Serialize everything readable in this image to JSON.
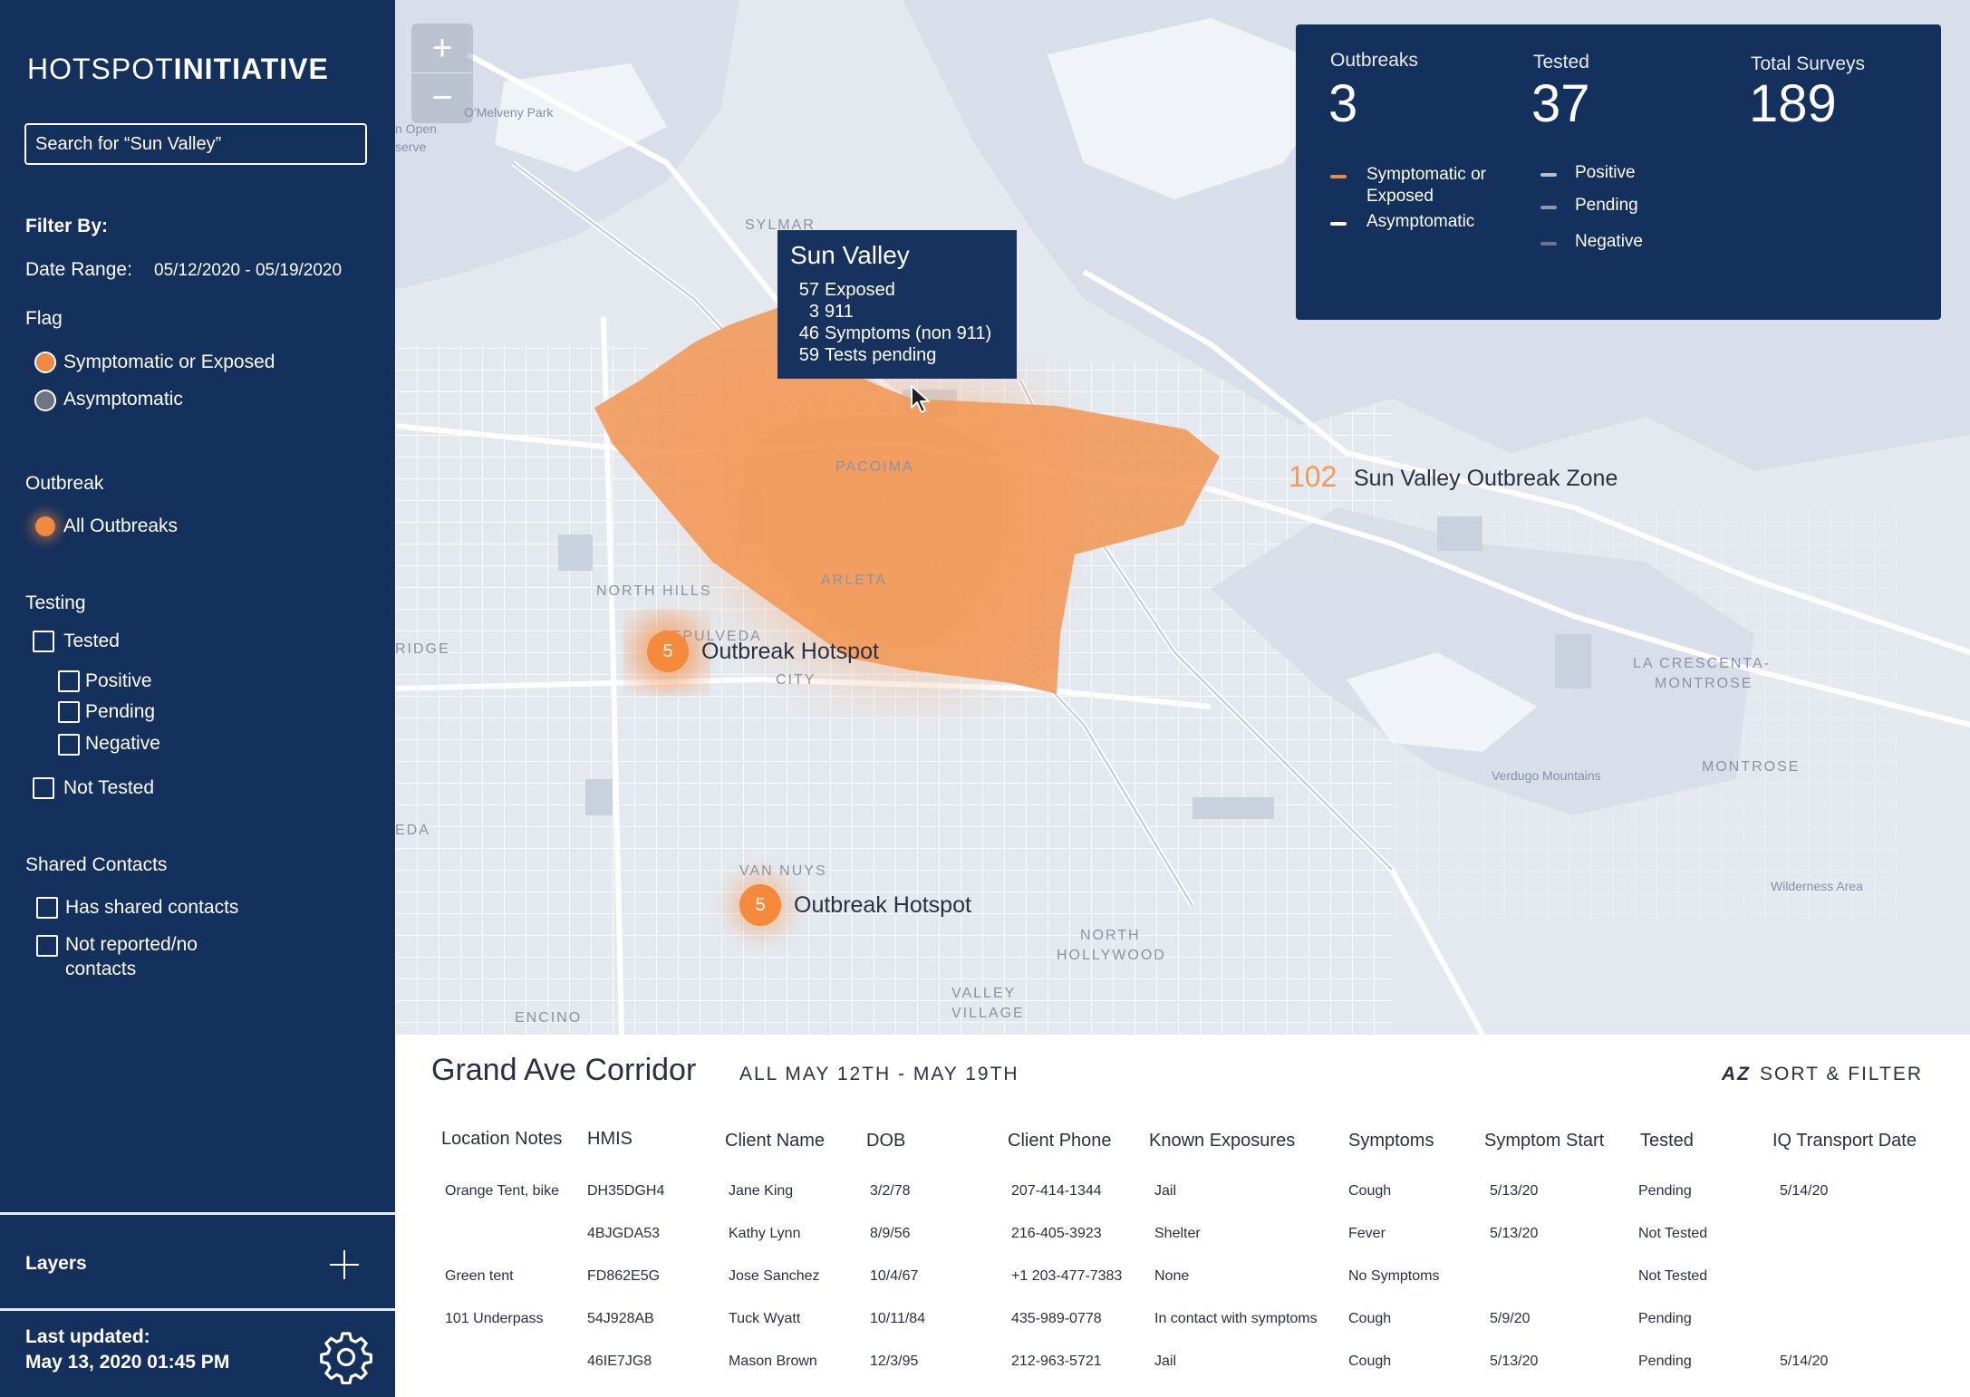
{
  "sidebar": {
    "brand_thin": "HOTSPOT",
    "brand_bold": "INITIATIVE",
    "search_placeholder": "Search for “Sun Valley”",
    "filter_by": "Filter By:",
    "date_range_label": "Date Range:",
    "date_range_value": "05/12/2020 - 05/19/2020",
    "flag_heading": "Flag",
    "flag_options": [
      "Symptomatic or Exposed",
      "Asymptomatic"
    ],
    "outbreak_heading": "Outbreak",
    "outbreak_option": "All Outbreaks",
    "testing_heading": "Testing",
    "testing_options": [
      "Tested",
      "Positive",
      "Pending",
      "Negative",
      "Not Tested"
    ],
    "shared_heading": "Shared Contacts",
    "shared_options": [
      "Has shared contacts",
      "Not reported/no",
      "contacts"
    ],
    "layers_label": "Layers",
    "last_updated_label": "Last updated:",
    "last_updated_value": "May 13, 2020 01:45 PM"
  },
  "map": {
    "zoom_in": "+",
    "zoom_out": "−",
    "place_labels": [
      "SYLMAR",
      "PACOIMA",
      "ARLETA",
      "NORTH HILLS",
      "VAN NUYS",
      "NORTH",
      "HOLLYWOOD",
      "VALLEY",
      "VILLAGE",
      "ENCINO",
      "LA CRESCENTA-",
      "MONTROSE",
      "MONTROSE",
      "Verdugo Mountains",
      "Wilderness Area",
      "RIDGE",
      "EDA",
      "SEPULVEDA",
      "CITY",
      "O'Melveny Park",
      "n Open",
      "serve"
    ],
    "hotspots": [
      {
        "count": "5",
        "label": "Outbreak Hotspot"
      },
      {
        "count": "5",
        "label": "Outbreak Hotspot"
      }
    ],
    "zone": {
      "count": "102",
      "label": "Sun Valley Outbreak Zone"
    },
    "tooltip": {
      "title": "Sun Valley",
      "rows": [
        {
          "num": "57",
          "text": "Exposed"
        },
        {
          "num": "3",
          "text": "911"
        },
        {
          "num": "46",
          "text": "Symptoms (non 911)"
        },
        {
          "num": "59",
          "text": "Tests pending"
        }
      ]
    },
    "stats": {
      "outbreaks_label": "Outbreaks",
      "outbreaks_value": "3",
      "tested_label": "Tested",
      "tested_value": "37",
      "surveys_label": "Total Surveys",
      "surveys_value": "189",
      "legend_left": [
        {
          "text": "Symptomatic or Exposed",
          "color": "#f08a3e"
        },
        {
          "text": "Asymptomatic",
          "color": "#ffffff"
        }
      ],
      "legend_right": [
        {
          "text": "Positive",
          "color": "#b8bfcc"
        },
        {
          "text": "Pending",
          "color": "#8c96a8"
        },
        {
          "text": "Negative",
          "color": "#6c7588"
        }
      ]
    }
  },
  "panel": {
    "title": "Grand Ave Corridor",
    "subtitle": "ALL MAY 12TH - MAY 19TH",
    "sort_az": "AZ",
    "sort_label": "SORT & FILTER",
    "columns": [
      "Location Notes",
      "HMIS",
      "Client Name",
      "DOB",
      "Client Phone",
      "Known Exposures",
      "Symptoms",
      "Symptom Start",
      "Tested",
      "IQ Transport Date"
    ],
    "rows": [
      [
        "Orange Tent, bike",
        "DH35DGH4",
        "Jane King",
        "3/2/78",
        "207-414-1344",
        "Jail",
        "Cough",
        "5/13/20",
        "Pending",
        "5/14/20"
      ],
      [
        "",
        "4BJGDA53",
        "Kathy Lynn",
        "8/9/56",
        "216-405-3923",
        "Shelter",
        "Fever",
        "5/13/20",
        "Not Tested",
        ""
      ],
      [
        "Green tent",
        "FD862E5G",
        "Jose Sanchez",
        "10/4/67",
        "+1 203-477-7383",
        "None",
        "No Symptoms",
        "",
        "Not Tested",
        ""
      ],
      [
        "101 Underpass",
        "54J928AB",
        "Tuck Wyatt",
        "10/11/84",
        "435-989-0778",
        "In contact with symptoms",
        "Cough",
        "5/9/20",
        "Pending",
        ""
      ],
      [
        "",
        "46IE7JG8",
        "Mason Brown",
        "12/3/95",
        "212-963-5721",
        "Jail",
        "Cough",
        "5/13/20",
        "Pending",
        "5/14/20"
      ]
    ]
  }
}
